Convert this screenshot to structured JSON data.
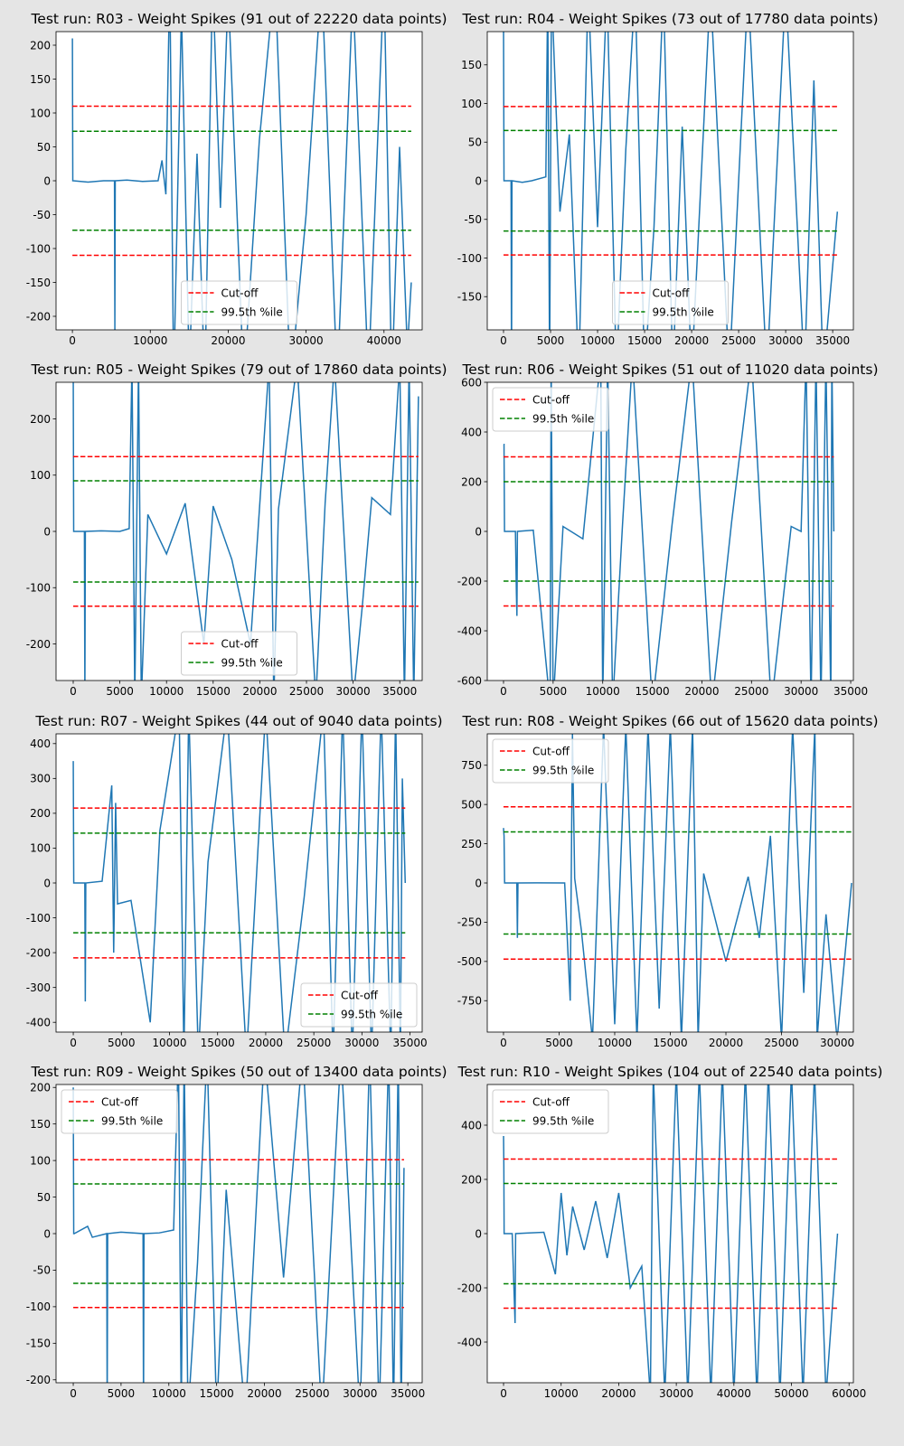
{
  "chart_data": [
    {
      "type": "line",
      "title": "Test run: R03 - Weight Spikes (91 out of 22220 data points)",
      "x": [
        0,
        50,
        100,
        2000,
        4000,
        5400,
        5450,
        5500,
        7000,
        9000,
        11000,
        11500,
        12000,
        12500,
        13000,
        14000,
        15000,
        16000,
        17000,
        18000,
        19000,
        20000,
        22000,
        24000,
        26000,
        28000,
        30000,
        32000,
        34000,
        36000,
        38000,
        40000,
        41000,
        42000,
        43000,
        43500
      ],
      "series": [
        {
          "color": "#1f77b4",
          "values": [
            210,
            0,
            0,
            -2,
            0,
            0,
            -220,
            0,
            1,
            -1,
            0,
            30,
            -20,
            300,
            -300,
            250,
            -280,
            40,
            -300,
            300,
            -40,
            280,
            -300,
            60,
            300,
            -300,
            -50,
            300,
            -300,
            280,
            -290,
            300,
            -300,
            50,
            -250,
            -150
          ]
        }
      ],
      "hlines": [
        {
          "name": "Cut-off",
          "color": "#ff0000",
          "values": [
            110,
            -110
          ]
        },
        {
          "name": "99.5th %ile",
          "color": "#008000",
          "values": [
            73,
            -73
          ]
        }
      ],
      "xlim": [
        -2100,
        44900
      ],
      "ylim": [
        -220,
        220
      ],
      "xticks": [
        0,
        10000,
        20000,
        30000,
        40000
      ],
      "yticks": [
        -200,
        -150,
        -100,
        -50,
        0,
        50,
        100,
        150,
        200
      ],
      "legend": "lower center"
    },
    {
      "type": "line",
      "title": "Test run: R04 - Weight Spikes (73 out of 17780 data points)",
      "x": [
        0,
        50,
        100,
        800,
        850,
        900,
        2000,
        3000,
        4500,
        4700,
        4900,
        5100,
        6000,
        7000,
        8000,
        9000,
        10000,
        11000,
        12000,
        13000,
        14000,
        15000,
        16000,
        17000,
        18000,
        19000,
        20000,
        22000,
        24000,
        26000,
        28000,
        30000,
        32000,
        33000,
        34000,
        35500
      ],
      "series": [
        {
          "color": "#1f77b4",
          "values": [
            200,
            0,
            0,
            0,
            -250,
            0,
            -2,
            0,
            5,
            250,
            -250,
            250,
            -40,
            60,
            -250,
            250,
            -60,
            250,
            -250,
            40,
            250,
            -250,
            -60,
            250,
            -250,
            70,
            -250,
            250,
            -250,
            250,
            -250,
            250,
            -250,
            130,
            -250,
            -40
          ]
        }
      ],
      "hlines": [
        {
          "name": "Cut-off",
          "color": "#ff0000",
          "values": [
            96,
            -96
          ]
        },
        {
          "name": "99.5th %ile",
          "color": "#008000",
          "values": [
            65,
            -65
          ]
        }
      ],
      "xlim": [
        -1730,
        37200
      ],
      "ylim": [
        -193,
        193
      ],
      "xticks": [
        0,
        5000,
        10000,
        15000,
        20000,
        25000,
        30000,
        35000
      ],
      "yticks": [
        -150,
        -100,
        -50,
        0,
        50,
        100,
        150
      ],
      "legend": "lower center"
    },
    {
      "type": "line",
      "title": "Test run: R05 - Weight Spikes (79 out of 17860 data points)",
      "x": [
        0,
        50,
        100,
        1200,
        1250,
        1300,
        3000,
        5000,
        6000,
        6300,
        6600,
        7000,
        7300,
        8000,
        10000,
        12000,
        14000,
        15000,
        17000,
        19000,
        21000,
        21500,
        22000,
        24000,
        26000,
        27000,
        28000,
        30000,
        31000,
        32000,
        34000,
        35000,
        35500,
        36000,
        36500,
        37000
      ],
      "series": [
        {
          "color": "#1f77b4",
          "values": [
            300,
            0,
            0,
            0,
            -300,
            0,
            1,
            0,
            5,
            300,
            -300,
            300,
            -300,
            30,
            -40,
            50,
            -200,
            45,
            -50,
            -200,
            300,
            -300,
            40,
            300,
            -300,
            50,
            300,
            -300,
            -130,
            60,
            30,
            300,
            -300,
            300,
            -300,
            240
          ]
        }
      ],
      "hlines": [
        {
          "name": "Cut-off",
          "color": "#ff0000",
          "values": [
            133,
            -133
          ]
        },
        {
          "name": "99.5th %ile",
          "color": "#008000",
          "values": [
            90,
            -90
          ]
        }
      ],
      "xlim": [
        -1840,
        37400
      ],
      "ylim": [
        -265,
        265
      ],
      "xticks": [
        0,
        5000,
        10000,
        15000,
        20000,
        25000,
        30000,
        35000
      ],
      "yticks": [
        -200,
        -100,
        0,
        100,
        200
      ],
      "legend": "lower center"
    },
    {
      "type": "line",
      "title": "Test run: R06 - Weight Spikes (51 out of 11020 data points)",
      "x": [
        0,
        50,
        100,
        1200,
        1300,
        1350,
        1400,
        3000,
        4700,
        4800,
        5000,
        6000,
        8000,
        9800,
        10000,
        10500,
        11000,
        12000,
        13000,
        15000,
        17000,
        19000,
        21000,
        23000,
        25000,
        27000,
        29000,
        30000,
        30500,
        31000,
        31500,
        32000,
        32500,
        33000,
        33100,
        33300
      ],
      "series": [
        {
          "color": "#1f77b4",
          "values": [
            350,
            350,
            0,
            0,
            -250,
            -340,
            0,
            5,
            -700,
            700,
            -700,
            20,
            -30,
            700,
            -700,
            700,
            -700,
            30,
            700,
            -700,
            30,
            700,
            -700,
            40,
            700,
            -700,
            20,
            0,
            700,
            -700,
            700,
            -700,
            700,
            -700,
            700,
            0
          ]
        }
      ],
      "hlines": [
        {
          "name": "Cut-off",
          "color": "#ff0000",
          "values": [
            300,
            -300
          ]
        },
        {
          "name": "99.5th %ile",
          "color": "#008000",
          "values": [
            200,
            -200
          ]
        }
      ],
      "xlim": [
        -1640,
        35270
      ],
      "ylim": [
        -600,
        600
      ],
      "xticks": [
        0,
        5000,
        10000,
        15000,
        20000,
        25000,
        30000,
        35000
      ],
      "yticks": [
        -600,
        -400,
        -200,
        0,
        200,
        400,
        600
      ],
      "legend": "upper left"
    },
    {
      "type": "line",
      "title": "Test run: R07 - Weight Spikes (44 out of 9040 data points)",
      "x": [
        0,
        50,
        100,
        1200,
        1250,
        1300,
        3000,
        4000,
        4200,
        4400,
        4600,
        6000,
        8000,
        9000,
        11000,
        11500,
        12000,
        13000,
        14000,
        16000,
        18000,
        20000,
        22000,
        24000,
        26000,
        27000,
        28000,
        29000,
        30000,
        31000,
        32000,
        33000,
        33500,
        34000,
        34200,
        34500
      ],
      "series": [
        {
          "color": "#1f77b4",
          "values": [
            350,
            0,
            0,
            0,
            -340,
            0,
            5,
            280,
            -200,
            230,
            -60,
            -50,
            -400,
            150,
            500,
            -500,
            500,
            -500,
            60,
            500,
            -500,
            500,
            -500,
            -40,
            500,
            -500,
            500,
            -500,
            500,
            -500,
            500,
            -500,
            500,
            -500,
            300,
            0
          ]
        }
      ],
      "hlines": [
        {
          "name": "Cut-off",
          "color": "#ff0000",
          "values": [
            215,
            -215
          ]
        },
        {
          "name": "99.5th %ile",
          "color": "#008000",
          "values": [
            143,
            -143
          ]
        }
      ],
      "xlim": [
        -1790,
        36260
      ],
      "ylim": [
        -428,
        428
      ],
      "xticks": [
        0,
        5000,
        10000,
        15000,
        20000,
        25000,
        30000,
        35000
      ],
      "yticks": [
        -400,
        -300,
        -200,
        -100,
        0,
        100,
        200,
        300,
        400
      ],
      "legend": "lower right"
    },
    {
      "type": "line",
      "title": "Test run: R08 - Weight Spikes (66 out of 15620 data points)",
      "x": [
        0,
        50,
        100,
        1200,
        1250,
        1300,
        3000,
        5500,
        6000,
        6200,
        6400,
        7000,
        8000,
        9000,
        10000,
        11000,
        12000,
        13000,
        14000,
        15000,
        16000,
        17000,
        17500,
        18000,
        20000,
        22000,
        23000,
        24000,
        25000,
        26000,
        27000,
        28000,
        28200,
        29000,
        30000,
        31300
      ],
      "series": [
        {
          "color": "#1f77b4",
          "values": [
            350,
            300,
            0,
            0,
            -350,
            0,
            1,
            0,
            -750,
            950,
            30,
            -300,
            -1000,
            1000,
            -900,
            1000,
            -1000,
            1000,
            -800,
            1000,
            -1000,
            1000,
            -1000,
            60,
            -500,
            40,
            -350,
            300,
            -1000,
            1000,
            -700,
            1000,
            -1000,
            -200,
            -1000,
            0
          ]
        }
      ],
      "hlines": [
        {
          "name": "Cut-off",
          "color": "#ff0000",
          "values": [
            485,
            -485
          ]
        },
        {
          "name": "99.5th %ile",
          "color": "#008000",
          "values": [
            325,
            -325
          ]
        }
      ],
      "xlim": [
        -1460,
        31460
      ],
      "ylim": [
        -950,
        950
      ],
      "xticks": [
        0,
        5000,
        10000,
        15000,
        20000,
        25000,
        30000
      ],
      "yticks": [
        -750,
        -500,
        -250,
        0,
        250,
        500,
        750
      ],
      "legend": "upper left"
    },
    {
      "type": "line",
      "title": "Test run: R09 - Weight Spikes (50 out of 13400 data points)",
      "x": [
        0,
        50,
        100,
        1500,
        2000,
        3500,
        3550,
        3600,
        5000,
        7300,
        7350,
        7400,
        9000,
        10500,
        11000,
        11300,
        11600,
        12000,
        13000,
        14000,
        15000,
        16000,
        18000,
        20000,
        22000,
        24000,
        26000,
        28000,
        30000,
        31000,
        32000,
        33000,
        33500,
        34000,
        34300,
        34600
      ],
      "series": [
        {
          "color": "#1f77b4",
          "values": [
            200,
            0,
            0,
            10,
            -5,
            0,
            -250,
            0,
            2,
            0,
            -250,
            0,
            1,
            5,
            250,
            -250,
            250,
            -250,
            -40,
            250,
            -250,
            60,
            -250,
            250,
            -60,
            250,
            -250,
            250,
            -250,
            250,
            -250,
            250,
            -250,
            250,
            -250,
            90
          ]
        }
      ],
      "hlines": [
        {
          "name": "Cut-off",
          "color": "#ff0000",
          "values": [
            101,
            -101
          ]
        },
        {
          "name": "99.5th %ile",
          "color": "#008000",
          "values": [
            68,
            -68
          ]
        }
      ],
      "xlim": [
        -1800,
        36500
      ],
      "ylim": [
        -204,
        204
      ],
      "xticks": [
        0,
        5000,
        10000,
        15000,
        20000,
        25000,
        30000,
        35000
      ],
      "yticks": [
        -200,
        -150,
        -100,
        -50,
        0,
        50,
        100,
        150,
        200
      ],
      "legend": "upper left"
    },
    {
      "type": "line",
      "title": "Test run: R10 - Weight Spikes (104 out of 22540 data points)",
      "x": [
        0,
        50,
        100,
        1500,
        2000,
        2100,
        4000,
        7000,
        9000,
        10000,
        11000,
        12000,
        14000,
        16000,
        18000,
        20000,
        22000,
        24000,
        25500,
        26000,
        28000,
        30000,
        32000,
        34000,
        36000,
        38000,
        40000,
        42000,
        44000,
        46000,
        48000,
        50000,
        52000,
        54000,
        56000,
        58000
      ],
      "series": [
        {
          "color": "#1f77b4",
          "values": [
            360,
            250,
            0,
            0,
            -330,
            0,
            2,
            5,
            -150,
            150,
            -80,
            100,
            -60,
            120,
            -90,
            150,
            -200,
            -120,
            -600,
            600,
            -600,
            600,
            -600,
            600,
            -600,
            600,
            -600,
            600,
            -600,
            600,
            -600,
            600,
            -600,
            600,
            -600,
            0
          ]
        }
      ],
      "hlines": [
        {
          "name": "Cut-off",
          "color": "#ff0000",
          "values": [
            275,
            -275
          ]
        },
        {
          "name": "99.5th %ile",
          "color": "#008000",
          "values": [
            185,
            -185
          ]
        }
      ],
      "xlim": [
        -2830,
        60750
      ],
      "ylim": [
        -550,
        550
      ],
      "xticks": [
        0,
        10000,
        20000,
        30000,
        40000,
        50000,
        60000
      ],
      "yticks": [
        -400,
        -200,
        0,
        200,
        400
      ],
      "legend": "upper left"
    }
  ]
}
